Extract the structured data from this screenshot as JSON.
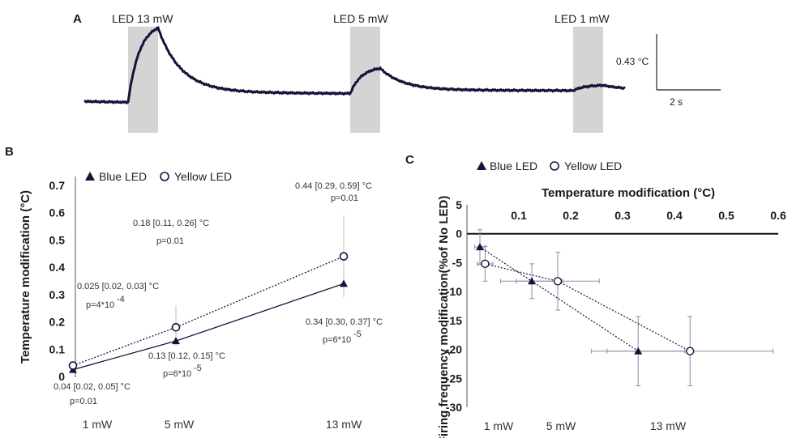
{
  "chart_data": [
    {
      "panel": "A",
      "type": "line",
      "title": "",
      "led_labels": [
        "LED 13 mW",
        "LED 5 mW",
        "LED 1 mW"
      ],
      "scale_bar": {
        "y_label": "0.43 °C",
        "x_label": "2 s"
      },
      "peak_temperature_change_c": [
        0.56,
        0.19,
        0.04
      ]
    },
    {
      "panel": "B",
      "type": "line",
      "title": "",
      "ylabel": "Temperature modification (°C)",
      "xlabel": "",
      "ylim": [
        0,
        0.7
      ],
      "yticks": [
        "0",
        "0.1",
        "0.2",
        "0.3",
        "0.4",
        "0.5",
        "0.6",
        "0.7"
      ],
      "categories": [
        "1 mW",
        "5 mW",
        "13 mW"
      ],
      "legend": {
        "position": "top-left",
        "entries": [
          "Blue LED",
          "Yellow LED"
        ]
      },
      "series": [
        {
          "name": "Blue LED",
          "marker": "filled-triangle",
          "line": "solid",
          "values": [
            0.025,
            0.13,
            0.34
          ],
          "error_low": [
            0.02,
            0.12,
            0.3
          ],
          "error_high": [
            0.03,
            0.15,
            0.37
          ]
        },
        {
          "name": "Yellow LED",
          "marker": "open-circle",
          "line": "dotted",
          "values": [
            0.04,
            0.18,
            0.44
          ],
          "error_low": [
            0.02,
            0.11,
            0.29
          ],
          "error_high": [
            0.05,
            0.26,
            0.59
          ]
        }
      ],
      "annotations": [
        {
          "id": "y13_ci",
          "text": "0.44 [0.29, 0.59] °C"
        },
        {
          "id": "y13_p",
          "text": "p=0.01"
        },
        {
          "id": "y5_ci",
          "text": "0.18 [0.11, 0.26] °C"
        },
        {
          "id": "y5_p",
          "text": "p=0.01"
        },
        {
          "id": "b1_ci",
          "text": "0.025 [0.02, 0.03] °C"
        },
        {
          "id": "b1_p",
          "text": "p=4*10"
        },
        {
          "id": "b1_p_exp",
          "text": "-4"
        },
        {
          "id": "b5_ci",
          "text": "0.13 [0.12, 0.15] °C"
        },
        {
          "id": "b5_p",
          "text": "p=6*10"
        },
        {
          "id": "b5_p_exp",
          "text": "-5"
        },
        {
          "id": "b13_ci",
          "text": "0.34 [0.30, 0.37] °C"
        },
        {
          "id": "b13_p",
          "text": "p=6*10"
        },
        {
          "id": "b13_p_exp",
          "text": "-5"
        },
        {
          "id": "y1_ci",
          "text": "0.04 [0.02, 0.05] °C"
        },
        {
          "id": "y1_p",
          "text": "p=0.01"
        }
      ]
    },
    {
      "panel": "C",
      "type": "scatter",
      "title": "",
      "xlabel": "Temperature modification (°C)",
      "ylabel": "Firing frequency modification(%of No LED)",
      "xlim": [
        0,
        0.6
      ],
      "ylim": [
        -30,
        5
      ],
      "xticks": [
        "0.1",
        "0.2",
        "0.3",
        "0.4",
        "0.5",
        "0.6"
      ],
      "yticks": [
        "5",
        "0",
        "-5",
        "-10",
        "-15",
        "-20",
        "-25",
        "-30"
      ],
      "categories": [
        "1 mW",
        "5 mW",
        "13 mW"
      ],
      "legend": {
        "position": "top-left",
        "entries": [
          "Blue LED",
          "Yellow LED"
        ]
      },
      "series": [
        {
          "name": "Blue LED",
          "marker": "filled-triangle",
          "line": "dotted",
          "x": [
            0.025,
            0.125,
            0.33
          ],
          "y": [
            -2.3,
            -8.2,
            -20.3
          ],
          "x_err": [
            0.01,
            0.06,
            0.09
          ],
          "y_err": [
            3.0,
            3.0,
            6.0
          ]
        },
        {
          "name": "Yellow LED",
          "marker": "open-circle",
          "line": "dotted",
          "x": [
            0.035,
            0.175,
            0.43
          ],
          "y": [
            -5.2,
            -8.2,
            -20.3
          ],
          "x_err": [
            0.015,
            0.08,
            0.16
          ],
          "y_err": [
            3.0,
            5.0,
            6.0
          ]
        }
      ]
    }
  ]
}
